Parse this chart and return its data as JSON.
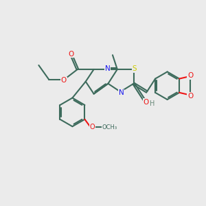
{
  "bg_color": "#ebebeb",
  "bond_color": "#3d6b5c",
  "bond_lw": 1.5,
  "N_color": "#1515ee",
  "S_color": "#cccc00",
  "O_color": "#ee1515",
  "H_color": "#6a8a7a",
  "font_size": 7.5,
  "figsize": [
    3.0,
    3.0
  ],
  "dpi": 100,
  "xlim": [
    0,
    10
  ],
  "ylim": [
    0,
    10
  ]
}
